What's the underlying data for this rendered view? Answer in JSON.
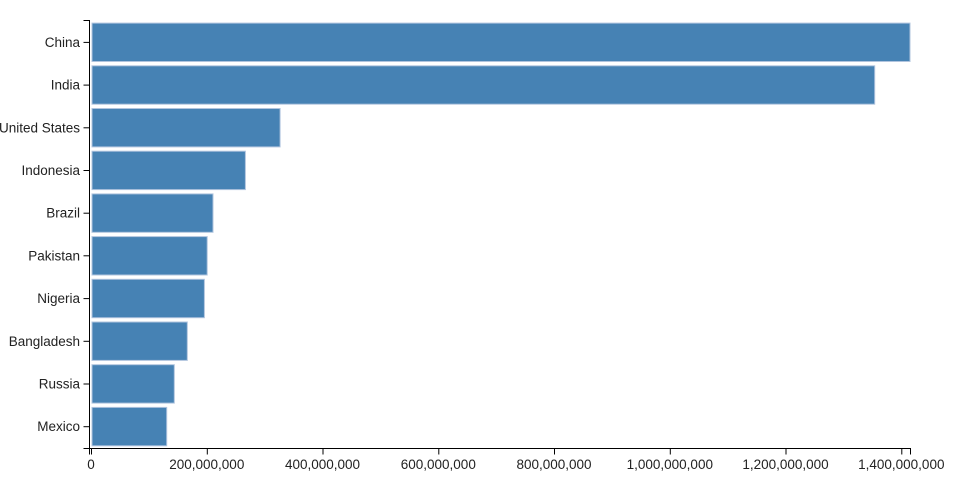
{
  "chart_data": {
    "type": "bar",
    "orientation": "horizontal",
    "title": "",
    "xlabel": "",
    "ylabel": "",
    "categories": [
      "China",
      "India",
      "United States",
      "Indonesia",
      "Brazil",
      "Pakistan",
      "Nigeria",
      "Bangladesh",
      "Russia",
      "Mexico"
    ],
    "values": [
      1415045928,
      1354051854,
      326766748,
      266794980,
      210867954,
      200813818,
      195875237,
      166368149,
      143964709,
      130759074
    ],
    "xlim": [
      0,
      1415045928
    ],
    "x_ticks": [
      0,
      200000000,
      400000000,
      600000000,
      800000000,
      1000000000,
      1200000000,
      1400000000
    ],
    "x_tick_labels": [
      "0",
      "200,000,000",
      "400,000,000",
      "600,000,000",
      "800,000,000",
      "1,000,000,000",
      "1,200,000,000",
      "1,400,000,000"
    ],
    "grid": false,
    "legend": false,
    "colors": {
      "bar_fill": "#4682b4",
      "bar_stroke": "#b0c4de",
      "axis_line": "#000000",
      "tick_text": "#222222"
    },
    "background": "#ffffff"
  }
}
